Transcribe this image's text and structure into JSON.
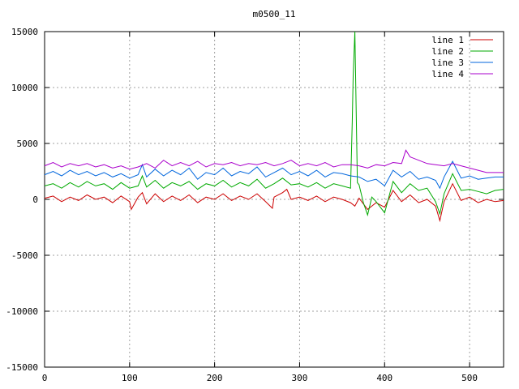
{
  "chart_data": {
    "type": "line",
    "title": "m0500_11",
    "xlabel": "",
    "ylabel": "",
    "xlim": [
      0,
      540
    ],
    "ylim": [
      -15000,
      15000
    ],
    "x_ticks": [
      0,
      100,
      200,
      300,
      400,
      500
    ],
    "y_ticks": [
      -15000,
      -10000,
      -5000,
      0,
      5000,
      10000,
      15000
    ],
    "grid": true,
    "legend_position": "top-right",
    "series": [
      {
        "name": "line 1",
        "color": "#cc0000",
        "x": [
          0,
          10,
          20,
          30,
          40,
          50,
          60,
          70,
          80,
          90,
          100,
          102,
          110,
          115,
          120,
          130,
          140,
          150,
          160,
          170,
          180,
          190,
          200,
          210,
          220,
          230,
          240,
          250,
          260,
          268,
          270,
          280,
          285,
          290,
          300,
          310,
          320,
          330,
          340,
          350,
          360,
          365,
          370,
          380,
          390,
          400,
          410,
          420,
          430,
          440,
          450,
          460,
          465,
          470,
          480,
          490,
          500,
          510,
          520,
          530,
          540
        ],
        "y": [
          100,
          300,
          -200,
          200,
          -100,
          400,
          0,
          200,
          -300,
          300,
          -200,
          -900,
          200,
          600,
          -400,
          500,
          -200,
          300,
          -100,
          400,
          -300,
          200,
          0,
          500,
          -100,
          300,
          0,
          500,
          -200,
          -800,
          200,
          600,
          900,
          0,
          200,
          -100,
          300,
          -200,
          200,
          0,
          -300,
          -600,
          100,
          -900,
          -300,
          -700,
          800,
          -200,
          400,
          -300,
          0,
          -600,
          -1900,
          -200,
          1400,
          -100,
          200,
          -300,
          0,
          -200,
          -100
        ]
      },
      {
        "name": "line 2",
        "color": "#00aa00",
        "x": [
          0,
          10,
          20,
          30,
          40,
          50,
          60,
          70,
          80,
          90,
          100,
          110,
          115,
          120,
          130,
          140,
          150,
          160,
          170,
          180,
          190,
          200,
          210,
          220,
          230,
          240,
          250,
          260,
          270,
          280,
          290,
          300,
          310,
          320,
          330,
          340,
          350,
          360,
          362,
          363,
          365,
          368,
          370,
          375,
          380,
          385,
          390,
          400,
          410,
          420,
          430,
          440,
          450,
          460,
          465,
          470,
          480,
          490,
          500,
          510,
          520,
          530,
          540
        ],
        "y": [
          1200,
          1400,
          1000,
          1500,
          1100,
          1600,
          1200,
          1400,
          900,
          1500,
          1000,
          1200,
          2100,
          1100,
          1700,
          1000,
          1500,
          1200,
          1600,
          900,
          1400,
          1200,
          1700,
          1100,
          1500,
          1200,
          1800,
          1000,
          1400,
          1900,
          1300,
          1400,
          1100,
          1500,
          1000,
          1400,
          1200,
          1000,
          7000,
          11000,
          15000,
          1500,
          1300,
          -300,
          -1400,
          200,
          -200,
          -1200,
          1600,
          600,
          1400,
          800,
          1000,
          -200,
          -1300,
          500,
          2300,
          800,
          900,
          700,
          500,
          800,
          900
        ]
      },
      {
        "name": "line 3",
        "color": "#0066dd",
        "x": [
          0,
          10,
          20,
          30,
          40,
          50,
          60,
          70,
          80,
          90,
          100,
          110,
          115,
          120,
          130,
          140,
          150,
          160,
          170,
          180,
          190,
          200,
          210,
          220,
          230,
          240,
          250,
          260,
          270,
          280,
          290,
          300,
          310,
          320,
          330,
          340,
          350,
          360,
          370,
          380,
          390,
          400,
          410,
          420,
          430,
          440,
          450,
          460,
          465,
          470,
          480,
          490,
          500,
          510,
          520,
          530,
          540
        ],
        "y": [
          2200,
          2500,
          2100,
          2600,
          2200,
          2500,
          2100,
          2400,
          2000,
          2300,
          1900,
          2200,
          3100,
          2000,
          2700,
          2100,
          2600,
          2200,
          2800,
          1800,
          2400,
          2200,
          2800,
          2100,
          2500,
          2300,
          2900,
          2000,
          2400,
          2800,
          2200,
          2500,
          2100,
          2600,
          2000,
          2400,
          2300,
          2100,
          2000,
          1600,
          1800,
          1200,
          2600,
          2000,
          2500,
          1800,
          2000,
          1700,
          1000,
          2000,
          3400,
          1900,
          2100,
          1800,
          1900,
          2000,
          2000
        ]
      },
      {
        "name": "line 4",
        "color": "#aa00cc",
        "x": [
          0,
          10,
          20,
          30,
          40,
          50,
          60,
          70,
          80,
          90,
          100,
          110,
          120,
          130,
          140,
          150,
          160,
          170,
          180,
          190,
          200,
          210,
          220,
          230,
          240,
          250,
          260,
          270,
          280,
          290,
          300,
          310,
          320,
          330,
          340,
          350,
          360,
          370,
          380,
          390,
          400,
          410,
          420,
          425,
          430,
          440,
          450,
          460,
          470,
          480,
          490,
          500,
          510,
          520,
          530,
          540
        ],
        "y": [
          3000,
          3300,
          2900,
          3200,
          3000,
          3200,
          2900,
          3100,
          2800,
          3000,
          2700,
          2900,
          3200,
          2800,
          3500,
          3000,
          3300,
          3000,
          3400,
          2900,
          3200,
          3100,
          3300,
          3000,
          3200,
          3100,
          3300,
          3000,
          3200,
          3500,
          3000,
          3200,
          3000,
          3300,
          2900,
          3100,
          3100,
          3000,
          2800,
          3100,
          3000,
          3300,
          3200,
          4400,
          3800,
          3500,
          3200,
          3100,
          3000,
          3200,
          3000,
          2800,
          2600,
          2400,
          2400,
          2400
        ]
      }
    ]
  }
}
